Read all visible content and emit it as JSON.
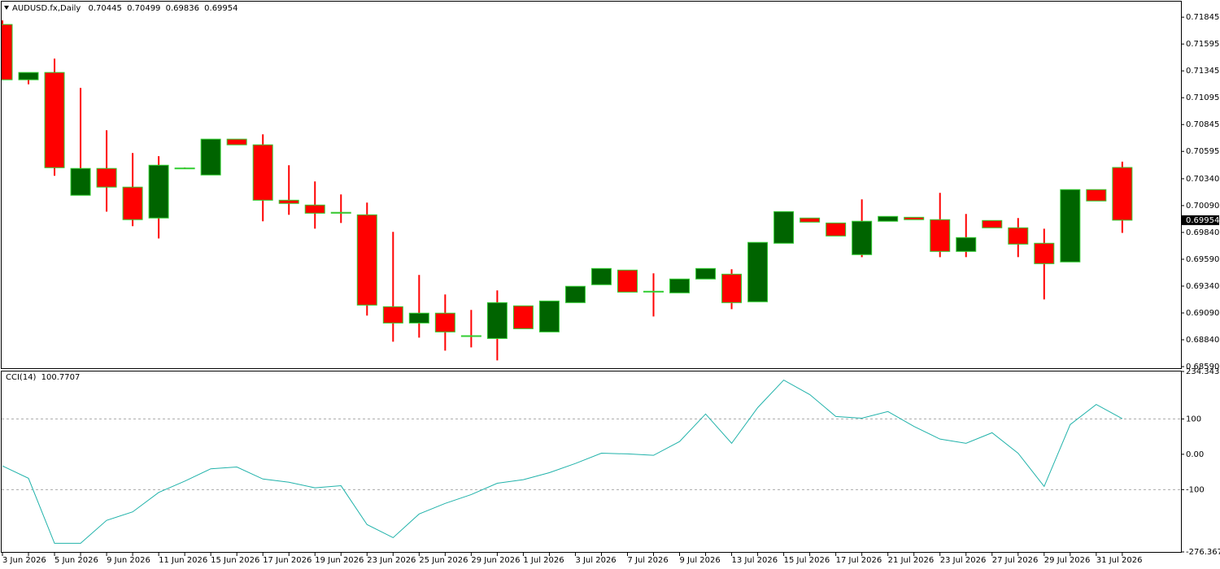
{
  "chart_data": [
    {
      "type": "candlestick",
      "symbol": "AUDUSD.fx,Daily",
      "x": [
        "3 Jun 2026",
        null,
        "5 Jun 2026",
        null,
        "9 Jun 2026",
        null,
        "11 Jun 2026",
        null,
        "15 Jun 2026",
        null,
        "17 Jun 2026",
        null,
        "19 Jun 2026",
        null,
        "23 Jun 2026",
        null,
        "25 Jun 2026",
        null,
        "29 Jun 2026",
        null,
        "1 Jul 2026",
        null,
        "3 Jul 2026",
        null,
        "7 Jul 2026",
        null,
        "9 Jul 2026",
        null,
        "13 Jul 2026",
        null,
        "15 Jul 2026",
        null,
        "17 Jul 2026",
        null,
        "21 Jul 2026",
        null,
        "23 Jul 2026",
        null,
        "27 Jul 2026",
        null,
        "29 Jul 2026",
        null,
        "31 Jul 2026",
        null
      ],
      "open": [
        0.71777,
        0.71262,
        0.7133,
        0.70186,
        0.70436,
        0.70262,
        0.69974,
        0.70436,
        0.70375,
        0.70709,
        0.70656,
        0.7014,
        0.70095,
        0.70027,
        0.70004,
        0.69148,
        0.68996,
        0.69088,
        0.68875,
        0.68852,
        0.69156,
        0.68913,
        0.69186,
        0.69353,
        0.69489,
        0.69292,
        0.69277,
        0.69406,
        0.69451,
        0.69194,
        0.69739,
        0.69974,
        0.69928,
        0.69633,
        0.69944,
        0.69981,
        0.69959,
        0.69663,
        0.69951,
        0.69883,
        0.69739,
        0.69565,
        0.70239,
        0.70445
      ],
      "high": [
        0.71815,
        0.7133,
        0.71459,
        0.71186,
        0.70792,
        0.7058,
        0.7055,
        0.70445,
        0.70709,
        0.70709,
        0.70754,
        0.70466,
        0.70315,
        0.70194,
        0.70118,
        0.69845,
        0.69444,
        0.69262,
        0.69118,
        0.693,
        0.69156,
        0.69201,
        0.69338,
        0.69504,
        0.69489,
        0.69459,
        0.69406,
        0.69504,
        0.69497,
        0.69747,
        0.70034,
        0.69974,
        0.69928,
        0.70148,
        0.69989,
        0.69981,
        0.70209,
        0.70012,
        0.69951,
        0.69974,
        0.69875,
        0.70239,
        0.70239,
        0.70499
      ],
      "low": [
        0.71262,
        0.7122,
        0.70368,
        0.70186,
        0.70034,
        0.69898,
        0.69784,
        0.7043,
        0.70375,
        0.70656,
        0.69944,
        0.70004,
        0.69875,
        0.69928,
        0.69065,
        0.68822,
        0.6886,
        0.68739,
        0.68769,
        0.68648,
        0.68943,
        0.68913,
        0.69186,
        0.69353,
        0.69284,
        0.69057,
        0.69277,
        0.69406,
        0.69125,
        0.69194,
        0.69739,
        0.69936,
        0.69807,
        0.6961,
        0.69944,
        0.69959,
        0.6961,
        0.6961,
        0.69883,
        0.6961,
        0.69216,
        0.69565,
        0.70133,
        0.69836
      ],
      "close": [
        0.71262,
        0.7133,
        0.70443,
        0.70436,
        0.70262,
        0.69959,
        0.70466,
        0.7044,
        0.70709,
        0.70656,
        0.7014,
        0.7011,
        0.70019,
        0.70019,
        0.69163,
        0.68996,
        0.69088,
        0.68913,
        0.68878,
        0.69186,
        0.68943,
        0.69201,
        0.69338,
        0.69504,
        0.69284,
        0.69292,
        0.69406,
        0.69504,
        0.69186,
        0.69747,
        0.70034,
        0.69936,
        0.69807,
        0.69944,
        0.69989,
        0.69959,
        0.69663,
        0.69792,
        0.69883,
        0.69731,
        0.69549,
        0.70239,
        0.70133,
        0.69954
      ],
      "ylim": [
        0.68575,
        0.7199
      ],
      "yticks": [
        0.71845,
        0.71595,
        0.71345,
        0.71095,
        0.70845,
        0.70595,
        {
          "value": 0.7034,
          "label": "0.70340"
        },
        {
          "value": 0.7009,
          "label": "0.70090"
        },
        {
          "value": 0.6984,
          "label": "0.69840"
        },
        {
          "value": 0.6959,
          "label": "0.69590"
        },
        {
          "value": 0.6934,
          "label": "0.69340"
        },
        {
          "value": 0.6909,
          "label": "0.69090"
        },
        {
          "value": 0.6884,
          "label": "0.68840"
        },
        {
          "value": 0.6859,
          "label": "0.68590"
        }
      ],
      "up_color": "#006400",
      "down_color": "#ff0000",
      "border_color": "#32cd32",
      "wick_color": "#ff0000"
    },
    {
      "type": "line",
      "series": [
        {
          "name": "CCI(14)",
          "color": "#20b2aa",
          "values": [
            -33,
            -68,
            -252,
            -252,
            -187,
            -163,
            -108,
            -76,
            -41,
            -36,
            -70,
            -79,
            -95,
            -89,
            -199,
            -236,
            -169,
            -139,
            -114,
            -82,
            -72,
            -52,
            -26,
            3,
            1,
            -3,
            36,
            114,
            31,
            132,
            210,
            169,
            107,
            102,
            121,
            79,
            43,
            31,
            61,
            3,
            -91,
            84,
            141,
            100.7707
          ]
        }
      ],
      "ylim": [
        -276.367,
        234.3437
      ],
      "yticks": [
        234.3437,
        100,
        {
          "value": 0,
          "label": "0.00"
        },
        -100,
        -276.367
      ],
      "levels": [
        100,
        -100
      ]
    }
  ]
}
